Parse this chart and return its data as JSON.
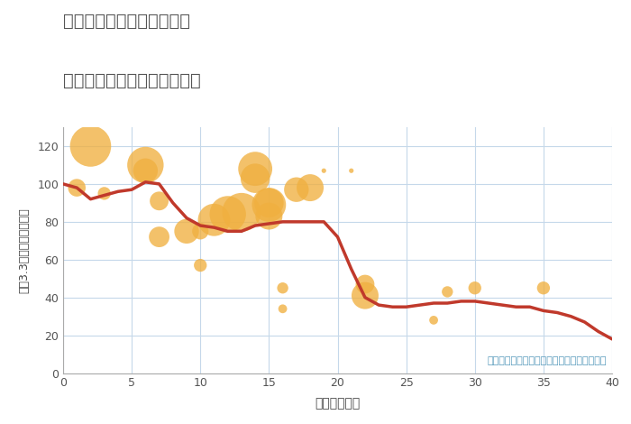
{
  "title_line1": "三重県津市安濃町東観音寺",
  "title_line2": "築年数別中古マンション価格",
  "xlabel": "築年数（年）",
  "ylabel": "坪（3.3㎡）単価（万円）",
  "annotation": "円の大きさは、取引のあった物件面積を示す",
  "xlim": [
    0,
    40
  ],
  "ylim": [
    0,
    130
  ],
  "xticks": [
    0,
    5,
    10,
    15,
    20,
    25,
    30,
    35,
    40
  ],
  "yticks": [
    0,
    20,
    40,
    60,
    80,
    100,
    120
  ],
  "background_color": "#ffffff",
  "grid_color": "#c5d8ea",
  "line_color": "#c0392b",
  "bubble_color": "#f0b040",
  "bubble_alpha": 0.78,
  "scatter_x": [
    1,
    2,
    3,
    6,
    6,
    7,
    7,
    9,
    10,
    10,
    11,
    12,
    13,
    14,
    14,
    15,
    15,
    15,
    16,
    16,
    17,
    18,
    19,
    21,
    22,
    22,
    27,
    28,
    30,
    35
  ],
  "scatter_y": [
    98,
    120,
    95,
    110,
    107,
    91,
    72,
    75,
    75,
    57,
    81,
    84,
    85,
    103,
    108,
    89,
    90,
    83,
    45,
    34,
    97,
    98,
    107,
    107,
    47,
    41,
    28,
    43,
    45,
    45
  ],
  "scatter_size": [
    30,
    70,
    22,
    62,
    42,
    32,
    35,
    42,
    28,
    22,
    55,
    62,
    66,
    50,
    58,
    58,
    50,
    46,
    19,
    15,
    42,
    46,
    8,
    8,
    32,
    46,
    15,
    19,
    22,
    22
  ],
  "line_x": [
    0,
    1,
    2,
    3,
    4,
    5,
    6,
    7,
    8,
    9,
    10,
    11,
    12,
    13,
    14,
    15,
    16,
    17,
    18,
    19,
    20,
    21,
    22,
    23,
    24,
    25,
    26,
    27,
    28,
    29,
    30,
    31,
    32,
    33,
    34,
    35,
    36,
    37,
    38,
    39,
    40
  ],
  "line_y": [
    100,
    98,
    92,
    94,
    96,
    97,
    101,
    100,
    90,
    82,
    78,
    77,
    75,
    75,
    78,
    79,
    80,
    80,
    80,
    80,
    72,
    55,
    40,
    36,
    35,
    35,
    36,
    37,
    37,
    38,
    38,
    37,
    36,
    35,
    35,
    33,
    32,
    30,
    27,
    22,
    18
  ]
}
